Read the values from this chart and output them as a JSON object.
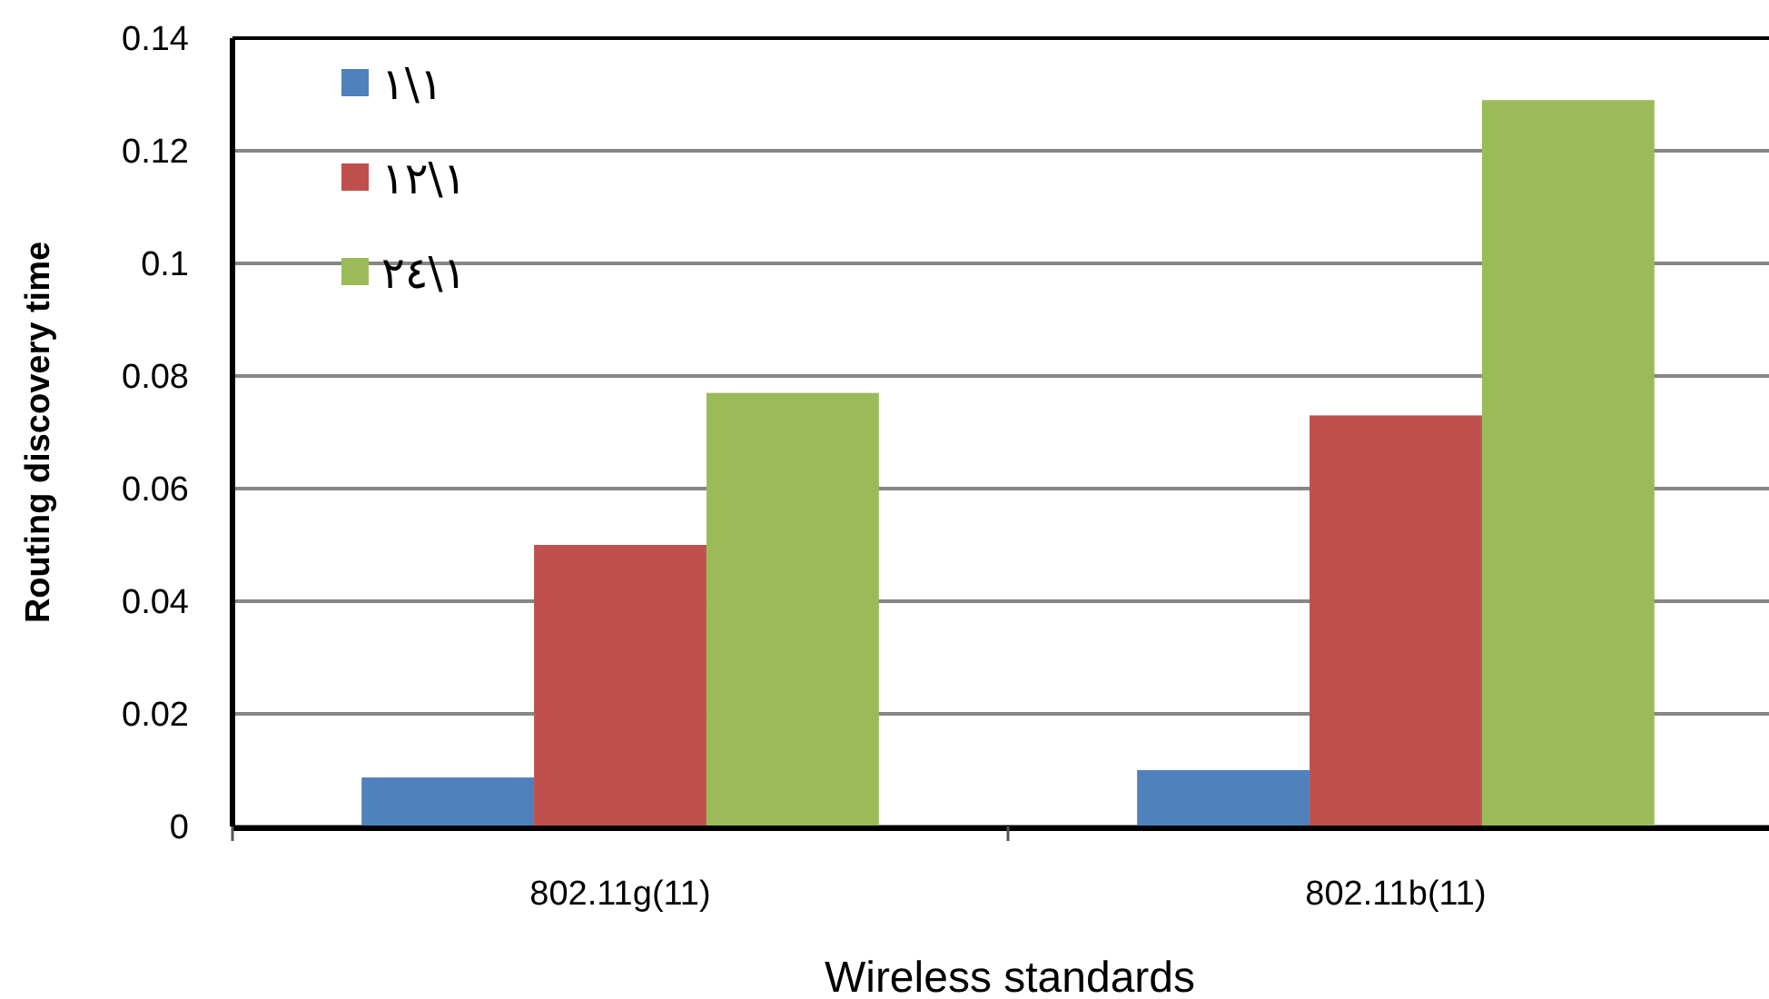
{
  "chart_data": {
    "type": "bar",
    "xlabel": "Wireless standards",
    "ylabel": "Routing discovery time",
    "categories": [
      "802.11g(11)",
      "802.11b(11)"
    ],
    "series": [
      {
        "name": "١\\١",
        "color": "#4f81bd",
        "values": [
          0.0087,
          0.01
        ]
      },
      {
        "name": "١٢\\١",
        "color": "#c0504d",
        "values": [
          0.05,
          0.073
        ]
      },
      {
        "name": "٢٤\\١",
        "color": "#9bbb59",
        "values": [
          0.077,
          0.129
        ]
      }
    ],
    "ylim": [
      0,
      0.14
    ],
    "yticks": [
      0,
      0.02,
      0.04,
      0.06,
      0.08,
      0.1,
      0.12,
      0.14
    ],
    "grid": "y",
    "legend": "top left"
  }
}
